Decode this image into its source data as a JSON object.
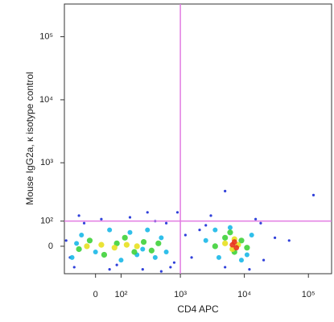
{
  "chart_data": {
    "type": "scatter",
    "x_label": "CD4 APC",
    "y_label": "Mouse IgG2a, κ isotype control",
    "xscale": "biexponential",
    "yscale": "biexponential",
    "xlim": [
      -130,
      230000
    ],
    "ylim": [
      -112,
      330000
    ],
    "xticks": [
      0,
      {
        "value": 100,
        "label": "10²"
      },
      {
        "value": 1000,
        "label": "10³"
      },
      {
        "value": 10000,
        "label": "10⁴"
      },
      {
        "value": 100000,
        "label": "10⁵"
      }
    ],
    "yticks": [
      0,
      {
        "value": 100,
        "label": "10²"
      },
      {
        "value": 1000,
        "label": "10³"
      },
      {
        "value": 10000,
        "label": "10⁴"
      },
      {
        "value": 100000,
        "label": "10⁵"
      }
    ],
    "gates": {
      "x": 1000,
      "y": 100,
      "color": "#e27be2"
    },
    "series": [
      {
        "color": "#1a2bd6",
        "x": [
          -120,
          -80,
          -40,
          20,
          80,
          150,
          250,
          400,
          600,
          800,
          900,
          1200,
          1500,
          2000,
          3000,
          5000,
          15000,
          20000,
          30000,
          50000,
          120000,
          -100,
          50,
          300,
          700,
          2500,
          12000,
          -60,
          500,
          18000,
          5000
        ],
        "values": [
          20,
          -80,
          90,
          110,
          -70,
          120,
          -90,
          100,
          90,
          -60,
          150,
          40,
          -40,
          60,
          130,
          -80,
          110,
          -50,
          30,
          20,
          300,
          -40,
          -90,
          150,
          -80,
          80,
          -90,
          130,
          -100,
          90,
          350
        ]
      },
      {
        "color": "#19b8e8",
        "x": [
          -90,
          -50,
          0,
          50,
          100,
          150,
          200,
          300,
          400,
          500,
          600,
          2500,
          4000,
          6000,
          9000,
          13000,
          -70,
          250,
          3500,
          11000
        ],
        "values": [
          -40,
          40,
          -20,
          60,
          -50,
          50,
          -30,
          60,
          -40,
          30,
          -20,
          20,
          -40,
          70,
          -50,
          40,
          10,
          -10,
          60,
          -30
        ]
      },
      {
        "color": "#3fd23a",
        "x": [
          -60,
          -20,
          30,
          80,
          120,
          180,
          260,
          350,
          450,
          3500,
          5000,
          7000,
          9000,
          11000,
          6000
        ],
        "values": [
          -10,
          20,
          -30,
          10,
          30,
          -20,
          15,
          -15,
          10,
          0,
          30,
          -20,
          20,
          -5,
          50
        ]
      },
      {
        "color": "#e8e020",
        "x": [
          -30,
          20,
          70,
          130,
          200,
          5000,
          6500,
          8000,
          7000
        ],
        "values": [
          0,
          5,
          -5,
          5,
          0,
          10,
          -10,
          5,
          25
        ]
      },
      {
        "color": "#e8341c",
        "x": [
          6500,
          7500,
          7000
        ],
        "values": [
          5,
          -5,
          15
        ]
      }
    ]
  }
}
